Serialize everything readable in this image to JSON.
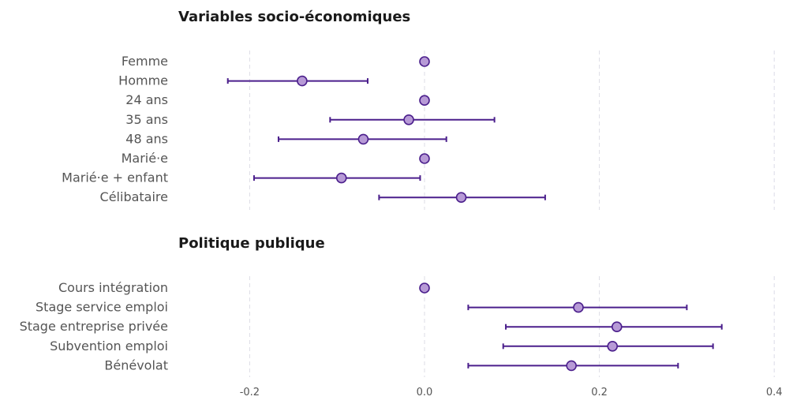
{
  "chart_data": {
    "type": "scatter",
    "subtype": "coefficient-plot-with-error-bars",
    "x_ticks": [
      -0.2,
      0.0,
      0.2,
      0.4
    ],
    "x_tick_labels": [
      "-0.2",
      "0.0",
      "0.2",
      "0.4"
    ],
    "xlim": [
      -0.3,
      0.42
    ],
    "grid": "vertical dashed",
    "colors": {
      "point_fill": "#b79ad6",
      "line": "#4b1f8c"
    },
    "panels": [
      {
        "title": "Variables socio-économiques",
        "items": [
          {
            "label": "Femme",
            "estimate": 0.0,
            "low": null,
            "high": null
          },
          {
            "label": "Homme",
            "estimate": -0.14,
            "low": -0.225,
            "high": -0.065
          },
          {
            "label": "24 ans",
            "estimate": 0.0,
            "low": null,
            "high": null
          },
          {
            "label": "35 ans",
            "estimate": -0.018,
            "low": -0.108,
            "high": 0.08
          },
          {
            "label": "48 ans",
            "estimate": -0.07,
            "low": -0.167,
            "high": 0.025
          },
          {
            "label": "Marié·e",
            "estimate": 0.0,
            "low": null,
            "high": null
          },
          {
            "label": "Marié·e + enfant",
            "estimate": -0.095,
            "low": -0.195,
            "high": -0.005
          },
          {
            "label": "Célibataire",
            "estimate": 0.042,
            "low": -0.052,
            "high": 0.138
          }
        ]
      },
      {
        "title": "Politique publique",
        "items": [
          {
            "label": "Cours intégration",
            "estimate": 0.0,
            "low": null,
            "high": null
          },
          {
            "label": "Stage service emploi",
            "estimate": 0.176,
            "low": 0.05,
            "high": 0.3
          },
          {
            "label": "Stage entreprise privée",
            "estimate": 0.22,
            "low": 0.093,
            "high": 0.34
          },
          {
            "label": "Subvention emploi",
            "estimate": 0.215,
            "low": 0.09,
            "high": 0.33
          },
          {
            "label": "Bénévolat",
            "estimate": 0.168,
            "low": 0.05,
            "high": 0.29
          }
        ]
      }
    ]
  }
}
